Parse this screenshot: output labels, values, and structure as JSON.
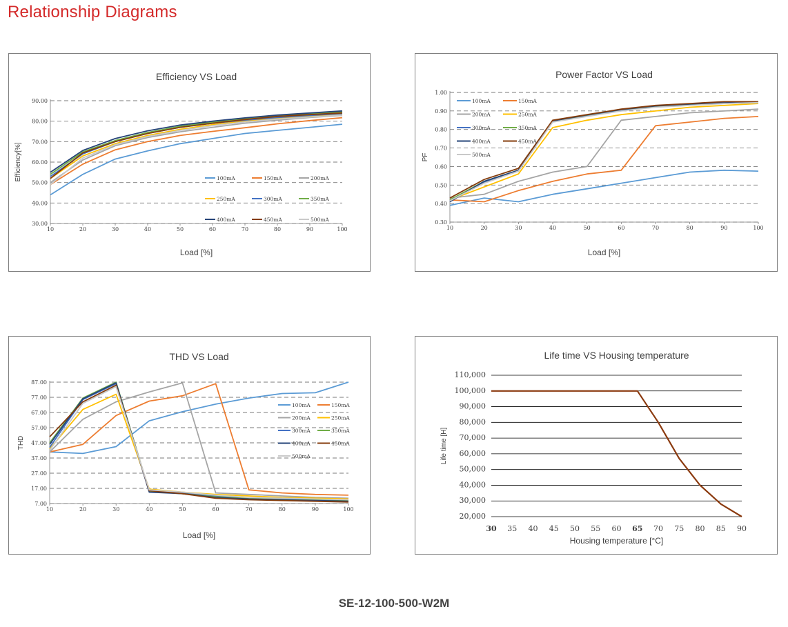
{
  "page": {
    "title": "Relationship Diagrams",
    "model": "SE-12-100-500-W2M"
  },
  "colors": {
    "title_red": "#d42a2a",
    "100mA": "#5b9bd5",
    "150mA": "#ed7d31",
    "200mA": "#a5a5a5",
    "250mA": "#ffc000",
    "300mA": "#4472c4",
    "350mA": "#70ad47",
    "400mA": "#264478",
    "450mA": "#843c0c",
    "500mA": "#c9c9c9",
    "lifetime": "#8b3a0f"
  },
  "chart_data": [
    {
      "id": "efficiency",
      "type": "line",
      "title": "Efficiency VS Load",
      "xlabel": "Load [%]",
      "ylabel": "Efficiency[%]",
      "x": [
        10,
        20,
        30,
        40,
        50,
        60,
        70,
        80,
        90,
        100
      ],
      "xticks": [
        "10",
        "20",
        "30",
        "40",
        "50",
        "60",
        "70",
        "80",
        "90",
        "100"
      ],
      "ylim": [
        30,
        90
      ],
      "yticks": [
        "30.00",
        "40.00",
        "50.00",
        "60.00",
        "70.00",
        "80.00",
        "90.00"
      ],
      "ytick_values": [
        30,
        40,
        50,
        60,
        70,
        80,
        90
      ],
      "grid": "dashed-horizontal",
      "series": [
        {
          "name": "100mA",
          "color_key": "100mA",
          "values": [
            44,
            54,
            61.5,
            65.5,
            69,
            71.5,
            74,
            75.5,
            77,
            78.5
          ]
        },
        {
          "name": "150mA",
          "color_key": "150mA",
          "values": [
            49,
            59,
            66,
            70,
            73,
            75,
            76.8,
            78.7,
            80.3,
            81.7
          ]
        },
        {
          "name": "200mA",
          "color_key": "200mA",
          "values": [
            50,
            61,
            68,
            72,
            74.8,
            77,
            79,
            80.5,
            81.8,
            82.8
          ]
        },
        {
          "name": "250mA",
          "color_key": "250mA",
          "values": [
            52,
            63,
            69,
            73,
            76,
            78.3,
            80,
            81.3,
            82.4,
            83.3
          ]
        },
        {
          "name": "300mA",
          "color_key": "300mA",
          "values": [
            53,
            64,
            70,
            74,
            77,
            79,
            80.5,
            81.8,
            82.8,
            83.7
          ]
        },
        {
          "name": "350mA",
          "color_key": "350mA",
          "values": [
            54,
            65,
            70.5,
            74.5,
            77.5,
            79.5,
            81.2,
            82.5,
            83.5,
            84.5
          ]
        },
        {
          "name": "400mA",
          "color_key": "400mA",
          "values": [
            55,
            65.7,
            71.5,
            75.3,
            78.1,
            80,
            81.6,
            83,
            84,
            85
          ]
        },
        {
          "name": "450mA",
          "color_key": "450mA",
          "values": [
            52,
            64.5,
            70,
            74,
            77,
            79,
            80.8,
            82.3,
            83.2,
            84
          ]
        },
        {
          "name": "500mA",
          "color_key": "500mA",
          "values": [
            49,
            62,
            68.5,
            72.5,
            75.5,
            77.8,
            79.6,
            81,
            82,
            83
          ]
        }
      ],
      "legend": {
        "placement": "bottom-right",
        "columns": 3
      }
    },
    {
      "id": "power-factor",
      "type": "line",
      "title": "Power Factor VS Load",
      "xlabel": "Load [%]",
      "ylabel": "PF",
      "x": [
        10,
        20,
        30,
        40,
        50,
        60,
        70,
        80,
        90,
        100
      ],
      "xticks": [
        "10",
        "20",
        "30",
        "40",
        "50",
        "60",
        "70",
        "80",
        "90",
        "100"
      ],
      "ylim": [
        0.3,
        1.0
      ],
      "yticks": [
        "0.30",
        "0.40",
        "0.50",
        "0.60",
        "0.70",
        "0.80",
        "0.90",
        "1.00"
      ],
      "ytick_values": [
        0.3,
        0.4,
        0.5,
        0.6,
        0.7,
        0.8,
        0.9,
        1.0
      ],
      "grid": "dashed-horizontal",
      "series": [
        {
          "name": "100mA",
          "color_key": "100mA",
          "values": [
            0.39,
            0.43,
            0.41,
            0.45,
            0.48,
            0.51,
            0.54,
            0.57,
            0.58,
            0.575
          ]
        },
        {
          "name": "150mA",
          "color_key": "150mA",
          "values": [
            0.42,
            0.41,
            0.47,
            0.52,
            0.56,
            0.58,
            0.82,
            0.84,
            0.86,
            0.87
          ]
        },
        {
          "name": "200mA",
          "color_key": "200mA",
          "values": [
            0.43,
            0.45,
            0.52,
            0.57,
            0.6,
            0.85,
            0.87,
            0.89,
            0.9,
            0.91
          ]
        },
        {
          "name": "250mA",
          "color_key": "250mA",
          "values": [
            0.42,
            0.49,
            0.56,
            0.81,
            0.85,
            0.88,
            0.9,
            0.92,
            0.93,
            0.94
          ]
        },
        {
          "name": "300mA",
          "color_key": "300mA",
          "values": [
            0.415,
            0.515,
            0.575,
            0.843,
            0.875,
            0.905,
            0.925,
            0.935,
            0.94,
            0.945
          ]
        },
        {
          "name": "350mA",
          "color_key": "350mA",
          "values": [
            0.42,
            0.52,
            0.58,
            0.845,
            0.878,
            0.908,
            0.925,
            0.935,
            0.942,
            0.947
          ]
        },
        {
          "name": "400mA",
          "color_key": "400mA",
          "values": [
            0.41,
            0.52,
            0.58,
            0.846,
            0.879,
            0.908,
            0.927,
            0.937,
            0.944,
            0.948
          ]
        },
        {
          "name": "450mA",
          "color_key": "450mA",
          "values": [
            0.43,
            0.53,
            0.59,
            0.85,
            0.88,
            0.91,
            0.93,
            0.94,
            0.95,
            0.95
          ]
        },
        {
          "name": "500mA",
          "color_key": "500mA",
          "values": [
            0.415,
            0.51,
            0.575,
            0.84,
            0.87,
            0.9,
            0.92,
            0.93,
            0.94,
            0.945
          ]
        }
      ],
      "legend": {
        "placement": "top-left",
        "columns": 2
      }
    },
    {
      "id": "thd",
      "type": "line",
      "title": "THD VS Load",
      "xlabel": "Load [%]",
      "ylabel": "THD",
      "x": [
        10,
        20,
        30,
        40,
        50,
        60,
        70,
        80,
        90,
        100
      ],
      "xticks": [
        "10",
        "20",
        "30",
        "40",
        "50",
        "60",
        "70",
        "80",
        "90",
        "100"
      ],
      "ylim": [
        7,
        87
      ],
      "yticks": [
        "7.00",
        "17.00",
        "27.00",
        "37.00",
        "47.00",
        "57.00",
        "67.00",
        "77.00",
        "87.00"
      ],
      "ytick_values": [
        7,
        17,
        27,
        37,
        47,
        57,
        67,
        77,
        87
      ],
      "grid": "dashed-horizontal",
      "series": [
        {
          "name": "100mA",
          "color_key": "100mA",
          "values": [
            41,
            40,
            44.5,
            61.5,
            67.5,
            72.5,
            76.5,
            79.5,
            80,
            87
          ]
        },
        {
          "name": "150mA",
          "color_key": "150mA",
          "values": [
            41,
            46,
            65,
            74.5,
            78,
            86,
            16,
            14,
            13,
            12.5
          ]
        },
        {
          "name": "200mA",
          "color_key": "200mA",
          "values": [
            41,
            62.5,
            74,
            80.5,
            86.5,
            14,
            13,
            12,
            11,
            10.5
          ]
        },
        {
          "name": "250mA",
          "color_key": "250mA",
          "values": [
            43,
            69,
            79,
            16.5,
            14.5,
            13,
            12,
            11,
            10.5,
            10
          ]
        },
        {
          "name": "300mA",
          "color_key": "300mA",
          "values": [
            44,
            75.5,
            86,
            15,
            14,
            12,
            10.5,
            10,
            9.5,
            9
          ]
        },
        {
          "name": "350mA",
          "color_key": "350mA",
          "values": [
            47,
            76.5,
            87,
            15,
            13.5,
            11.5,
            10.5,
            10,
            9.5,
            9
          ]
        },
        {
          "name": "400mA",
          "color_key": "400mA",
          "values": [
            46,
            76,
            86.5,
            14.5,
            13.5,
            11,
            10,
            9.5,
            9,
            8.5
          ]
        },
        {
          "name": "450mA",
          "color_key": "450mA",
          "values": [
            51,
            74,
            85,
            15.5,
            13.5,
            10.5,
            9.5,
            9,
            8.5,
            8
          ]
        },
        {
          "name": "500mA",
          "color_key": "500mA",
          "values": [
            42,
            73,
            84,
            16,
            14.5,
            12.5,
            11,
            10.5,
            10,
            9.5
          ]
        }
      ],
      "legend": {
        "placement": "right",
        "columns": 2
      }
    },
    {
      "id": "lifetime",
      "type": "line",
      "title": "Life time VS Housing temperature",
      "xlabel": "Housing temperature [°C]",
      "ylabel": "Life time [H]",
      "x": [
        30,
        35,
        40,
        45,
        50,
        55,
        60,
        65,
        70,
        75,
        80,
        85,
        90
      ],
      "xticks": [
        "30",
        "35",
        "40",
        "45",
        "50",
        "55",
        "60",
        "65",
        "70",
        "75",
        "80",
        "85",
        "90"
      ],
      "xticks_bold": [
        "30",
        "65"
      ],
      "ylim": [
        20000,
        110000
      ],
      "yticks": [
        "20,000",
        "30,000",
        "40,000",
        "50,000",
        "60,000",
        "70,000",
        "80,000",
        "90,000",
        "100,000",
        "110,000"
      ],
      "ytick_values": [
        20000,
        30000,
        40000,
        50000,
        60000,
        70000,
        80000,
        90000,
        100000,
        110000
      ],
      "grid": "solid-horizontal",
      "series": [
        {
          "color_key": "lifetime",
          "values": [
            100000,
            100000,
            100000,
            100000,
            100000,
            100000,
            100000,
            100000,
            80000,
            57000,
            40000,
            28000,
            20000
          ]
        }
      ]
    }
  ]
}
